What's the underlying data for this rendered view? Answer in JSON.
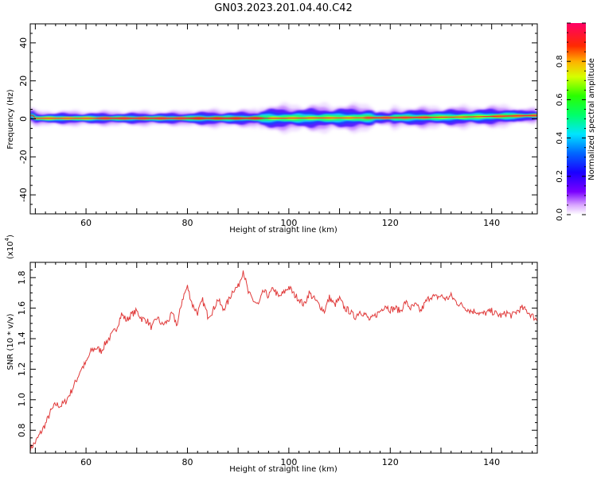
{
  "title": "GN03.2023.201.04.40.C42",
  "chart_data": [
    {
      "type": "heatmap",
      "xlabel": "Height of straight line (km)",
      "ylabel": "Frequency (Hz)",
      "xlim": [
        49,
        149
      ],
      "ylim": [
        -50,
        50
      ],
      "xticks": [
        60,
        80,
        100,
        120,
        140
      ],
      "yticks": [
        40,
        20,
        0,
        -20,
        -40
      ],
      "colorbar": {
        "label": "Normalized spectral amplitude",
        "range": [
          0,
          1
        ],
        "ticks": [
          "0.0",
          "0.2",
          "0.4",
          "0.6",
          "0.8"
        ],
        "colormap": "rainbow (purple→blue→cyan→green→yellow→orange→red→pink)"
      },
      "band": {
        "center_hz": [
          0.3,
          0.3,
          0.3,
          0.3,
          0.3,
          0.4,
          0.5,
          0.6,
          1.0,
          1.8
        ],
        "center_x": [
          50,
          60,
          70,
          80,
          90,
          100,
          110,
          120,
          135,
          149
        ],
        "description": "narrow high-amplitude band near 0 Hz, widening to ~±4 Hz between 95–115 km"
      }
    },
    {
      "type": "line",
      "xlabel": "Height of straight line (km)",
      "ylabel": "SNR (10 * v/v)",
      "y_multiplier": "(x10",
      "y_multiplier_exp": "4",
      "y_multiplier_close": ")",
      "xlim": [
        49,
        149
      ],
      "ylim": [
        0.65,
        1.9
      ],
      "xticks": [
        60,
        80,
        100,
        120,
        140
      ],
      "yticks": [
        0.8,
        1.0,
        1.2,
        1.4,
        1.6,
        1.8
      ],
      "series": [
        {
          "color": "#e03a3a",
          "x": [
            49,
            50,
            51,
            52,
            53,
            54,
            55,
            56,
            57,
            58,
            59,
            60,
            61,
            62,
            63,
            64,
            65,
            66,
            67,
            68,
            69,
            70,
            71,
            72,
            73,
            74,
            75,
            76,
            77,
            78,
            79,
            80,
            81,
            82,
            83,
            84,
            85,
            86,
            87,
            88,
            89,
            90,
            91,
            92,
            93,
            94,
            95,
            96,
            97,
            98,
            99,
            100,
            101,
            102,
            103,
            104,
            105,
            106,
            107,
            108,
            109,
            110,
            111,
            112,
            113,
            114,
            115,
            116,
            117,
            118,
            119,
            120,
            121,
            122,
            123,
            124,
            125,
            126,
            127,
            128,
            129,
            130,
            131,
            132,
            133,
            134,
            135,
            136,
            137,
            138,
            139,
            140,
            141,
            142,
            143,
            144,
            145,
            146,
            147,
            148,
            149
          ],
          "y": [
            0.68,
            0.72,
            0.78,
            0.84,
            0.92,
            0.97,
            0.96,
            0.99,
            1.05,
            1.12,
            1.2,
            1.24,
            1.32,
            1.34,
            1.32,
            1.38,
            1.42,
            1.47,
            1.56,
            1.52,
            1.56,
            1.58,
            1.53,
            1.52,
            1.47,
            1.54,
            1.49,
            1.51,
            1.56,
            1.49,
            1.66,
            1.74,
            1.62,
            1.57,
            1.65,
            1.55,
            1.58,
            1.66,
            1.59,
            1.64,
            1.72,
            1.74,
            1.85,
            1.7,
            1.65,
            1.62,
            1.71,
            1.68,
            1.73,
            1.67,
            1.7,
            1.74,
            1.69,
            1.66,
            1.62,
            1.7,
            1.66,
            1.62,
            1.58,
            1.67,
            1.62,
            1.66,
            1.6,
            1.58,
            1.54,
            1.58,
            1.56,
            1.52,
            1.55,
            1.58,
            1.62,
            1.59,
            1.6,
            1.58,
            1.64,
            1.6,
            1.62,
            1.58,
            1.64,
            1.68,
            1.67,
            1.68,
            1.66,
            1.68,
            1.64,
            1.62,
            1.6,
            1.58,
            1.58,
            1.56,
            1.57,
            1.58,
            1.56,
            1.55,
            1.57,
            1.55,
            1.58,
            1.6,
            1.58,
            1.55,
            1.52
          ]
        }
      ]
    }
  ]
}
